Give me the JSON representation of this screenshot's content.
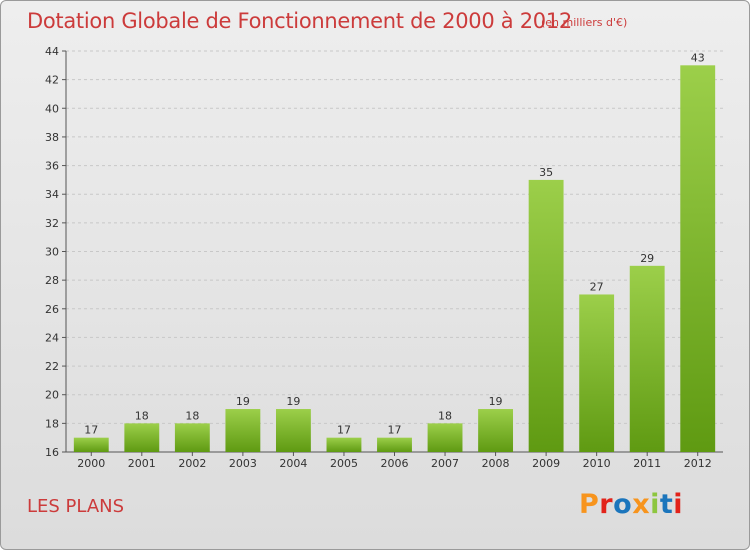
{
  "header": {
    "title": "Dotation Globale de Fonctionnement de 2000 à 2012",
    "unit": "(en milliers d'€)"
  },
  "footer": {
    "commune": "LES PLANS",
    "logo_text": "Proxiti"
  },
  "colors": {
    "title": "#cc3b3b",
    "bar_light": "#9ccf4a",
    "bar_dark": "#5f9a12",
    "logo_letters": [
      "#f7941d",
      "#e2231a",
      "#1b75bc",
      "#f7941d",
      "#8dc63f",
      "#1b75bc",
      "#e2231a"
    ]
  },
  "chart_data": {
    "type": "bar",
    "title": "Dotation Globale de Fonctionnement de 2000 à 2012",
    "subtitle": "(en milliers d'€)",
    "categories": [
      "2000",
      "2001",
      "2002",
      "2003",
      "2004",
      "2005",
      "2006",
      "2007",
      "2008",
      "2009",
      "2010",
      "2011",
      "2012"
    ],
    "values": [
      17,
      18,
      18,
      19,
      19,
      17,
      17,
      18,
      19,
      35,
      27,
      29,
      43
    ],
    "ylim": [
      16,
      44
    ],
    "yticks": [
      16,
      18,
      20,
      22,
      24,
      26,
      28,
      30,
      32,
      34,
      36,
      38,
      40,
      42,
      44
    ],
    "grid": true,
    "legend": "none"
  }
}
